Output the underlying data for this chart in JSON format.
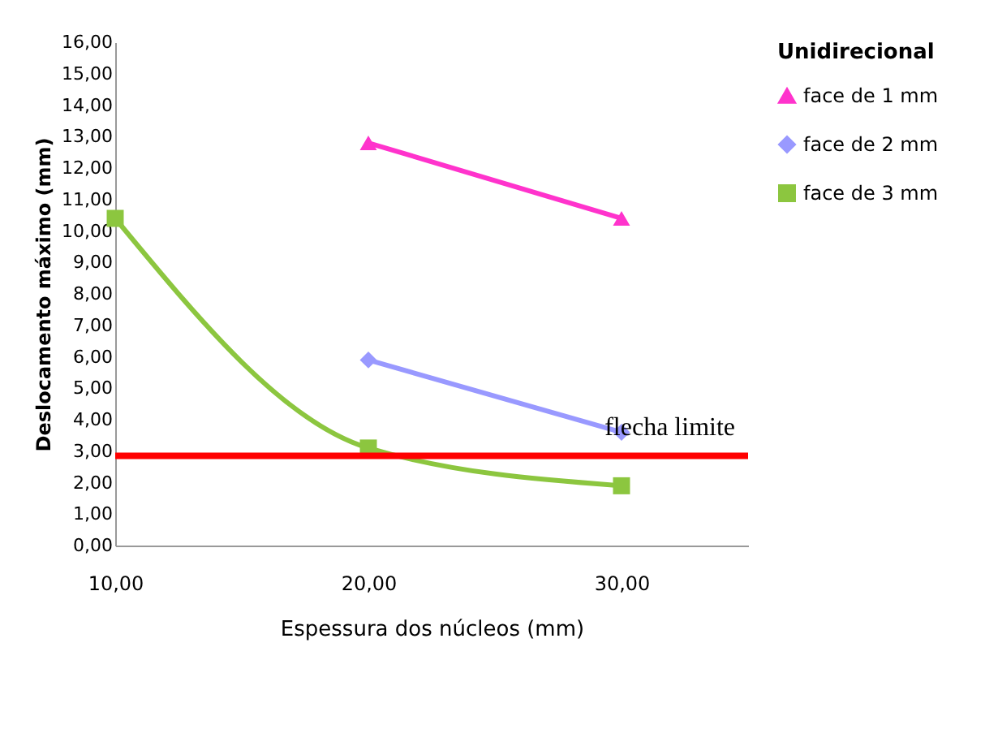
{
  "chart_data": {
    "type": "line",
    "xlabel": "Espessura dos núcleos  (mm)",
    "ylabel": "Deslocamento máximo (mm)",
    "legend_title": "Unidirecional",
    "x": [
      10,
      20,
      30
    ],
    "series": [
      {
        "name": "face de 1 mm",
        "color": "#ff33cc",
        "marker": "triangle",
        "values": [
          null,
          12.8,
          10.4
        ]
      },
      {
        "name": "face de 2 mm",
        "color": "#9999ff",
        "marker": "diamond",
        "values": [
          null,
          5.9,
          3.6
        ]
      },
      {
        "name": "face de 3 mm",
        "color": "#8cc63f",
        "marker": "square",
        "values": [
          10.4,
          3.1,
          1.9
        ]
      }
    ],
    "xlim": [
      10,
      35
    ],
    "xticks": [
      {
        "value": 10,
        "label": "10,00"
      },
      {
        "value": 20,
        "label": "20,00"
      },
      {
        "value": 30,
        "label": "30,00"
      }
    ],
    "ylim": [
      0,
      16
    ],
    "yticks": [
      {
        "value": 0,
        "label": "0,00"
      },
      {
        "value": 1,
        "label": "1,00"
      },
      {
        "value": 2,
        "label": "2,00"
      },
      {
        "value": 3,
        "label": "3,00"
      },
      {
        "value": 4,
        "label": "4,00"
      },
      {
        "value": 5,
        "label": "5,00"
      },
      {
        "value": 6,
        "label": "6,00"
      },
      {
        "value": 7,
        "label": "7,00"
      },
      {
        "value": 8,
        "label": "8,00"
      },
      {
        "value": 9,
        "label": "9,00"
      },
      {
        "value": 10,
        "label": "10,00"
      },
      {
        "value": 11,
        "label": "11,00"
      },
      {
        "value": 12,
        "label": "12,00"
      },
      {
        "value": 13,
        "label": "13,00"
      },
      {
        "value": 14,
        "label": "14,00"
      },
      {
        "value": 15,
        "label": "15,00"
      },
      {
        "value": 16,
        "label": "16,00"
      }
    ],
    "ref_lines": [
      {
        "axis": "y",
        "value": 2.85,
        "label": "flecha limite",
        "color": "#ff0000"
      }
    ],
    "grid": false,
    "legend": "right",
    "line_style": "solid"
  }
}
